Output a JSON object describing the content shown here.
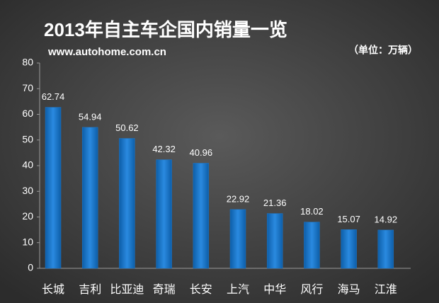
{
  "chart_data": {
    "type": "bar",
    "title": "2013年自主车企国内销量一览",
    "subtitle": "www.autohome.com.cn",
    "unit": "（单位：万辆）",
    "categories": [
      "长城",
      "吉利",
      "比亚迪",
      "奇瑞",
      "长安",
      "上汽",
      "中华",
      "风行",
      "海马",
      "江淮"
    ],
    "values": [
      62.74,
      54.94,
      50.62,
      42.32,
      40.96,
      22.92,
      21.36,
      18.02,
      15.07,
      14.92
    ],
    "color": "#1f77c9",
    "ylim": [
      0,
      80
    ],
    "yticks": [
      0,
      10,
      20,
      30,
      40,
      50,
      60,
      70,
      80
    ],
    "grid": false
  }
}
